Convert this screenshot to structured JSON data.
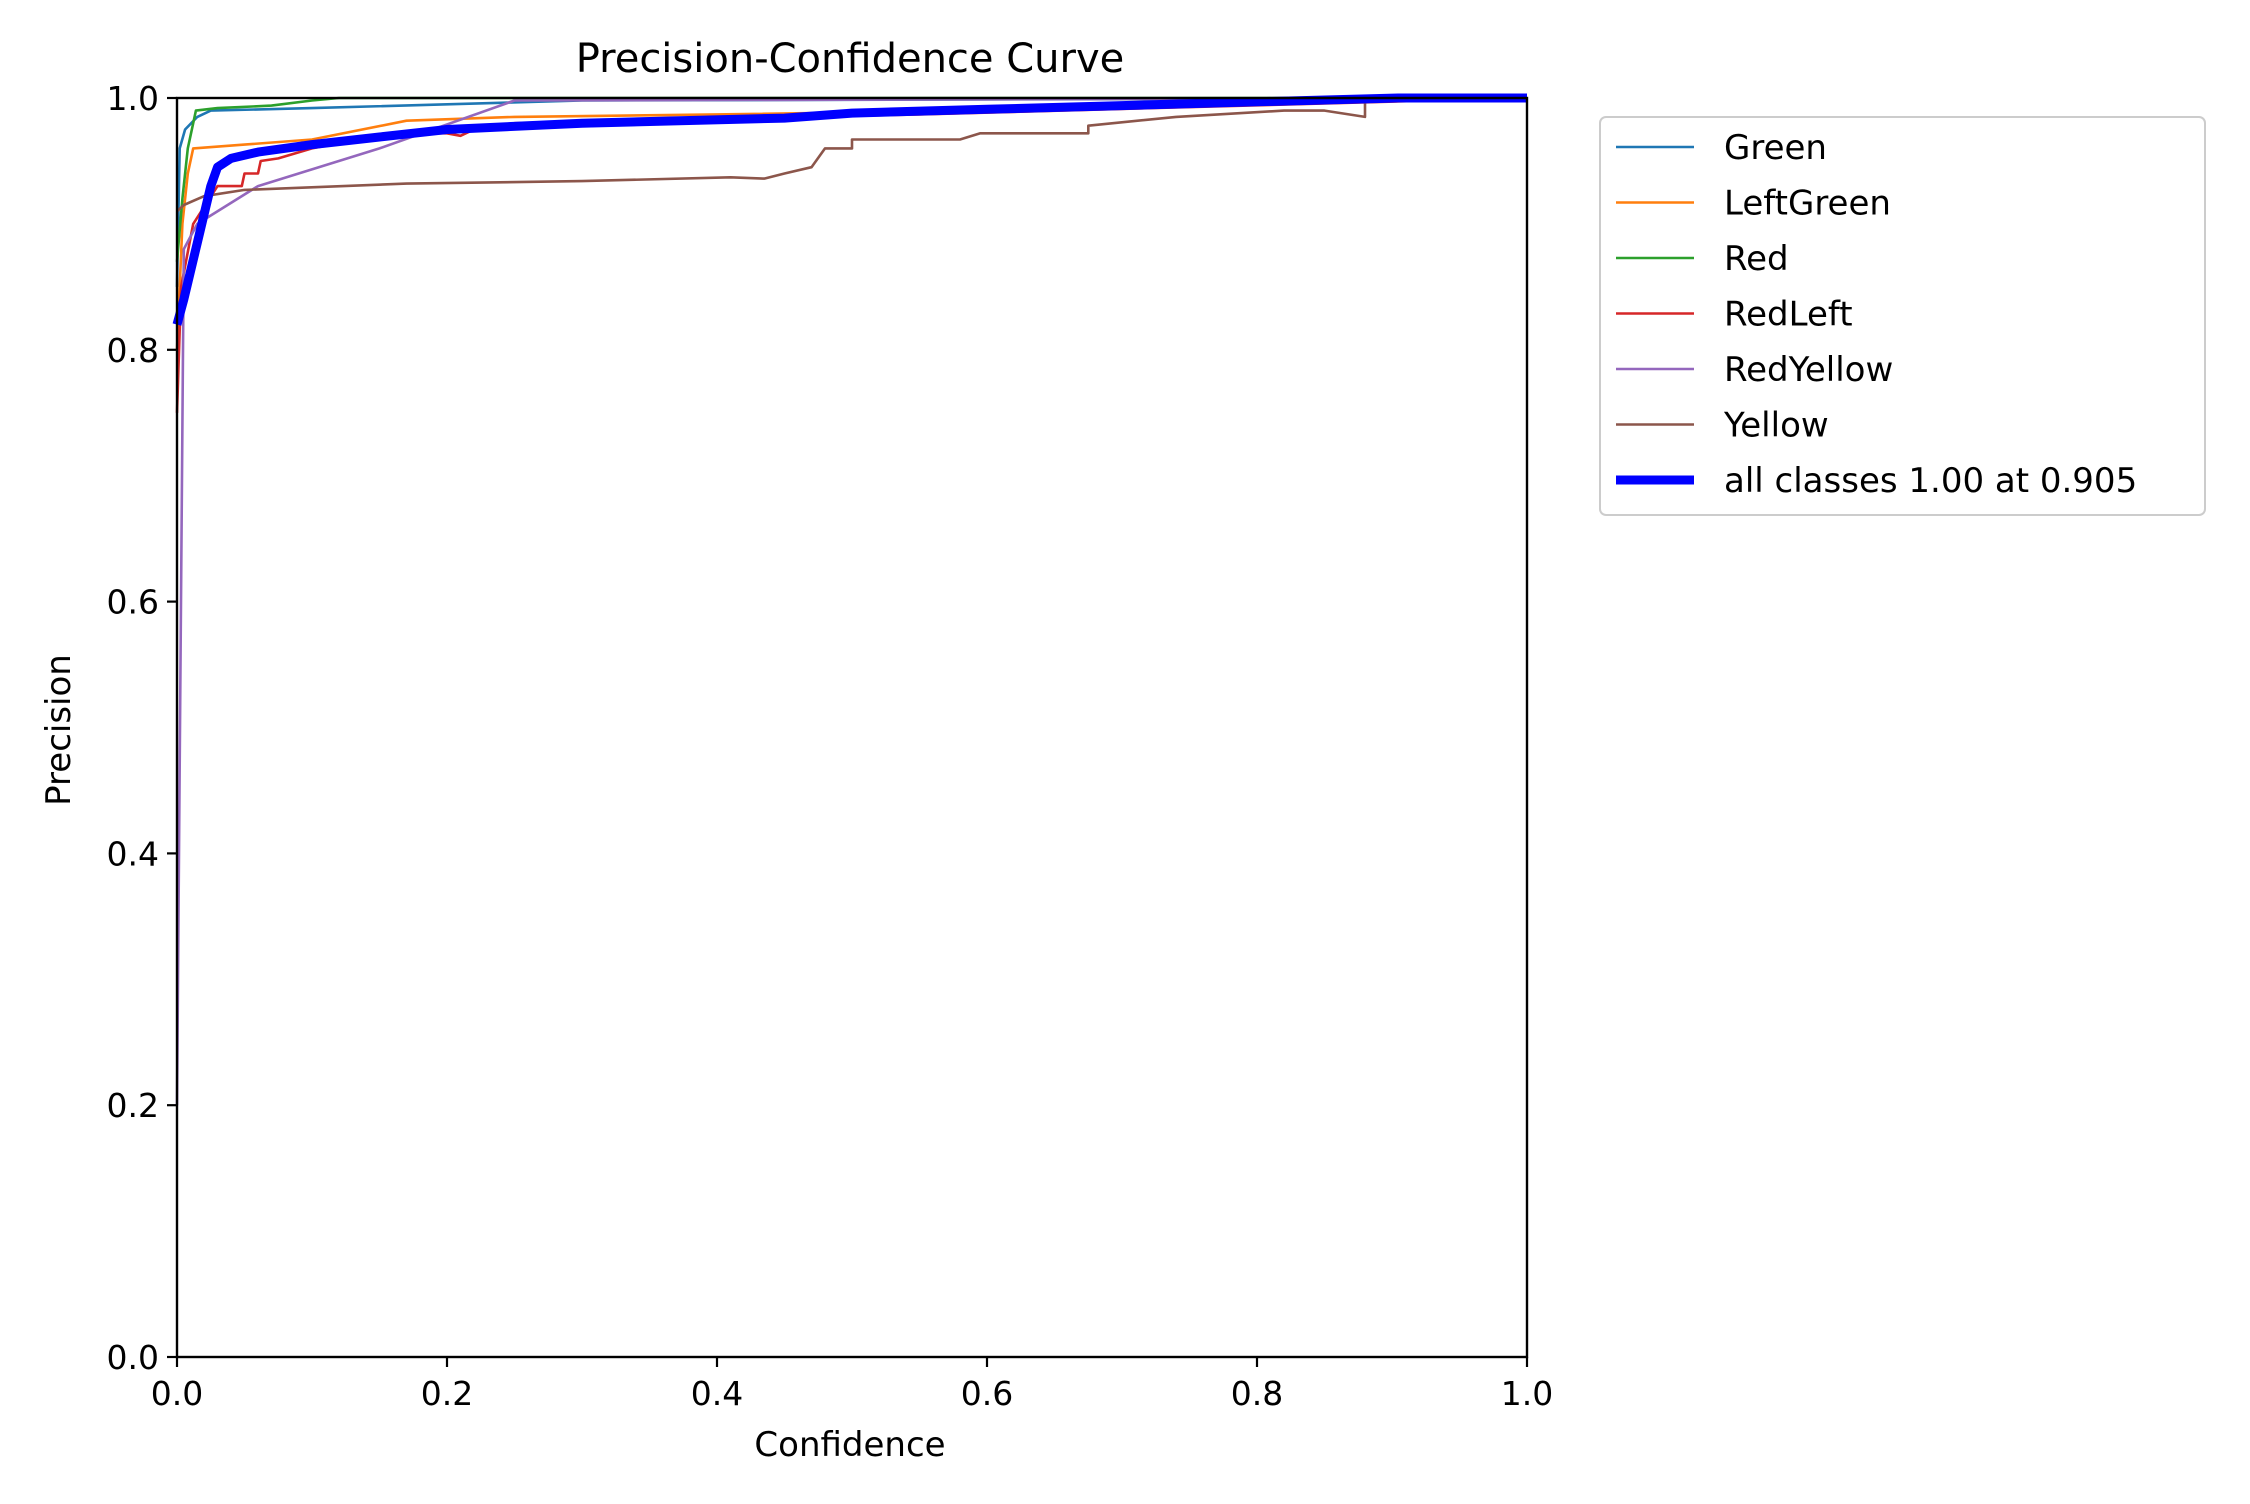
{
  "chart_data": {
    "type": "line",
    "title": "Precision-Confidence Curve",
    "xlabel": "Confidence",
    "ylabel": "Precision",
    "xlim": [
      0,
      1
    ],
    "ylim": [
      0,
      1
    ],
    "xticks": [
      "0.0",
      "0.2",
      "0.4",
      "0.6",
      "0.8",
      "1.0"
    ],
    "yticks": [
      "0.0",
      "0.2",
      "0.4",
      "0.6",
      "0.8",
      "1.0"
    ],
    "grid": false,
    "legend_position": "outside-upper-right",
    "series": [
      {
        "name": "Green",
        "color": "#1f77b4",
        "width": "thin",
        "points": [
          [
            0.0,
            0.85
          ],
          [
            0.002,
            0.96
          ],
          [
            0.006,
            0.975
          ],
          [
            0.015,
            0.985
          ],
          [
            0.025,
            0.99
          ],
          [
            0.1,
            0.992
          ],
          [
            0.3,
            0.998
          ],
          [
            1.0,
            1.0
          ]
        ]
      },
      {
        "name": "LeftGreen",
        "color": "#ff7f0e",
        "width": "thin",
        "points": [
          [
            0.0,
            0.8
          ],
          [
            0.004,
            0.9
          ],
          [
            0.008,
            0.94
          ],
          [
            0.012,
            0.96
          ],
          [
            0.05,
            0.963
          ],
          [
            0.1,
            0.967
          ],
          [
            0.17,
            0.982
          ],
          [
            0.25,
            0.985
          ],
          [
            0.4,
            0.987
          ],
          [
            0.6,
            0.99
          ],
          [
            1.0,
            1.0
          ]
        ]
      },
      {
        "name": "Red",
        "color": "#2ca02c",
        "width": "thin",
        "points": [
          [
            0.0,
            0.87
          ],
          [
            0.004,
            0.92
          ],
          [
            0.008,
            0.96
          ],
          [
            0.014,
            0.99
          ],
          [
            0.03,
            0.992
          ],
          [
            0.07,
            0.994
          ],
          [
            0.1,
            0.998
          ],
          [
            0.12,
            1.0
          ],
          [
            1.0,
            1.0
          ]
        ]
      },
      {
        "name": "RedLeft",
        "color": "#d62728",
        "width": "thin",
        "points": [
          [
            0.0,
            0.75
          ],
          [
            0.003,
            0.85
          ],
          [
            0.012,
            0.9
          ],
          [
            0.03,
            0.93
          ],
          [
            0.048,
            0.93
          ],
          [
            0.05,
            0.94
          ],
          [
            0.06,
            0.94
          ],
          [
            0.062,
            0.95
          ],
          [
            0.075,
            0.952
          ],
          [
            0.1,
            0.96
          ],
          [
            0.15,
            0.97
          ],
          [
            0.18,
            0.972
          ],
          [
            0.2,
            0.972
          ],
          [
            0.21,
            0.97
          ],
          [
            0.22,
            0.975
          ],
          [
            0.245,
            0.975
          ],
          [
            0.25,
            0.98
          ],
          [
            0.55,
            0.987
          ],
          [
            1.0,
            1.0
          ]
        ]
      },
      {
        "name": "RedYellow",
        "color": "#9467bd",
        "width": "thin",
        "points": [
          [
            0.0,
            0.2
          ],
          [
            0.005,
            0.88
          ],
          [
            0.015,
            0.9
          ],
          [
            0.06,
            0.93
          ],
          [
            0.15,
            0.96
          ],
          [
            0.25,
            0.998
          ],
          [
            1.0,
            1.0
          ]
        ]
      },
      {
        "name": "Yellow",
        "color": "#8c564b",
        "width": "thin",
        "points": [
          [
            0.0,
            0.91
          ],
          [
            0.005,
            0.915
          ],
          [
            0.02,
            0.922
          ],
          [
            0.05,
            0.927
          ],
          [
            0.17,
            0.932
          ],
          [
            0.3,
            0.934
          ],
          [
            0.41,
            0.937
          ],
          [
            0.435,
            0.936
          ],
          [
            0.45,
            0.94
          ],
          [
            0.47,
            0.945
          ],
          [
            0.48,
            0.96
          ],
          [
            0.5,
            0.96
          ],
          [
            0.5,
            0.967
          ],
          [
            0.58,
            0.967
          ],
          [
            0.595,
            0.972
          ],
          [
            0.675,
            0.972
          ],
          [
            0.675,
            0.978
          ],
          [
            0.74,
            0.985
          ],
          [
            0.82,
            0.99
          ],
          [
            0.85,
            0.99
          ],
          [
            0.88,
            0.985
          ],
          [
            0.88,
            0.998
          ],
          [
            0.9,
            1.0
          ],
          [
            1.0,
            1.0
          ]
        ]
      },
      {
        "name": "all classes 1.00 at 0.905",
        "color": "#0000ff",
        "width": "thick",
        "points": [
          [
            0.0,
            0.82
          ],
          [
            0.005,
            0.84
          ],
          [
            0.015,
            0.885
          ],
          [
            0.025,
            0.93
          ],
          [
            0.03,
            0.945
          ],
          [
            0.04,
            0.952
          ],
          [
            0.06,
            0.957
          ],
          [
            0.1,
            0.963
          ],
          [
            0.15,
            0.969
          ],
          [
            0.2,
            0.975
          ],
          [
            0.3,
            0.98
          ],
          [
            0.45,
            0.984
          ],
          [
            0.5,
            0.988
          ],
          [
            0.6,
            0.991
          ],
          [
            0.7,
            0.994
          ],
          [
            0.8,
            0.997
          ],
          [
            0.905,
            1.0
          ],
          [
            1.0,
            1.0
          ]
        ]
      }
    ]
  }
}
